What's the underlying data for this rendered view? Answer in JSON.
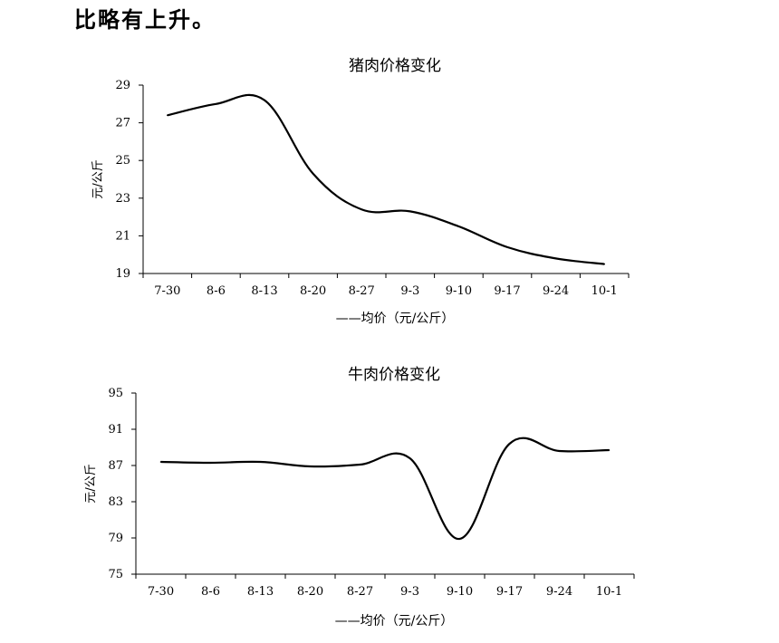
{
  "header_text": "比略有上升。",
  "chart_data": [
    {
      "type": "line",
      "title": "猪肉价格变化",
      "ylabel": "元/公斤",
      "legend": "——均价（元/公斤）",
      "categories": [
        "7-30",
        "8-6",
        "8-13",
        "8-20",
        "8-27",
        "9-3",
        "9-10",
        "9-17",
        "9-24",
        "10-1"
      ],
      "series": [
        {
          "name": "均价（元/公斤）",
          "values": [
            27.4,
            28.0,
            28.2,
            24.3,
            22.4,
            22.3,
            21.5,
            20.4,
            19.8,
            19.5
          ]
        }
      ],
      "yticks": [
        19,
        21,
        23,
        25,
        27,
        29
      ],
      "ylim": [
        19,
        29
      ],
      "grid": false,
      "legend_position": "bottom"
    },
    {
      "type": "line",
      "title": "牛肉价格变化",
      "ylabel": "元/公斤",
      "legend": "——均价（元/公斤）",
      "categories": [
        "7-30",
        "8-6",
        "8-13",
        "8-20",
        "8-27",
        "9-3",
        "9-10",
        "9-17",
        "9-24",
        "10-1"
      ],
      "series": [
        {
          "name": "均价（元/公斤）",
          "values": [
            87.4,
            87.3,
            87.4,
            86.9,
            87.1,
            87.8,
            78.9,
            89.4,
            88.6,
            88.7
          ]
        }
      ],
      "yticks": [
        75,
        79,
        83,
        87,
        91,
        95
      ],
      "ylim": [
        75,
        95
      ],
      "grid": false,
      "legend_position": "bottom"
    }
  ]
}
